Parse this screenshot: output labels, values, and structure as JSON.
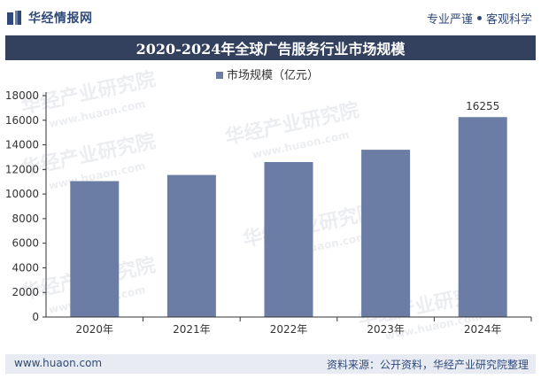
{
  "header": {
    "brand": "华经情报网",
    "tagline_left": "专业严谨",
    "tagline_right": "客观科学"
  },
  "title": "2020-2024年全球广告服务行业市场规模",
  "chart_data": {
    "type": "bar",
    "title": "2020-2024年全球广告服务行业市场规模",
    "categories": [
      "2020年",
      "2021年",
      "2022年",
      "2023年",
      "2024年"
    ],
    "series": [
      {
        "name": "市场规模（亿元）",
        "values": [
          11050,
          11550,
          12600,
          13600,
          16255
        ]
      }
    ],
    "data_labels": {
      "2024年": "16255"
    },
    "ylim": [
      0,
      18000
    ],
    "yticks": [
      0,
      2000,
      4000,
      6000,
      8000,
      10000,
      12000,
      14000,
      16000,
      18000
    ],
    "xlabel": "",
    "ylabel": "",
    "legend": "top-center",
    "grid": false,
    "bar_color": "#6b7da5"
  },
  "watermarks": [
    "华经产业研究院",
    "www.huaon.com"
  ],
  "footer": {
    "website": "www.huaon.com",
    "source": "资料来源：公开资料，华经产业研究院整理"
  },
  "colors": {
    "title_bg": "#33415f",
    "brand": "#2f4a7a",
    "footer_bg": "#e8ebf2",
    "axis": "#333333"
  }
}
